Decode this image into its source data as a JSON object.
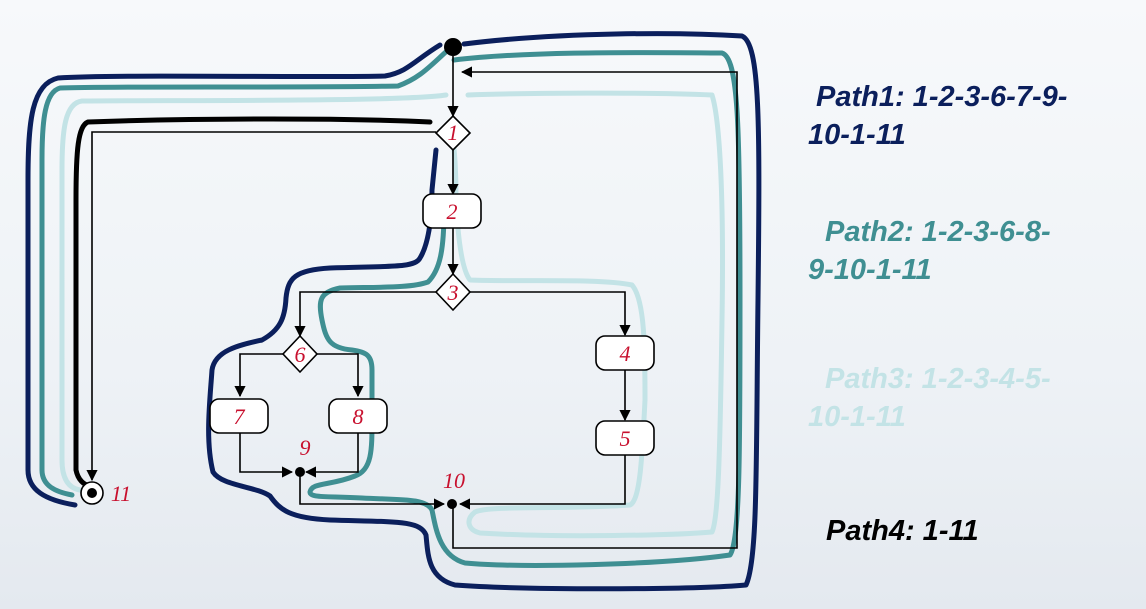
{
  "nodes": [
    {
      "id": "1",
      "label": "1",
      "shape": "diamond"
    },
    {
      "id": "2",
      "label": "2",
      "shape": "box"
    },
    {
      "id": "3",
      "label": "3",
      "shape": "diamond"
    },
    {
      "id": "4",
      "label": "4",
      "shape": "box"
    },
    {
      "id": "5",
      "label": "5",
      "shape": "box"
    },
    {
      "id": "6",
      "label": "6",
      "shape": "diamond"
    },
    {
      "id": "7",
      "label": "7",
      "shape": "box"
    },
    {
      "id": "8",
      "label": "8",
      "shape": "box"
    },
    {
      "id": "9",
      "label": "9",
      "shape": "junction"
    },
    {
      "id": "10",
      "label": "10",
      "shape": "junction"
    },
    {
      "id": "11",
      "label": "11",
      "shape": "final"
    }
  ],
  "edges": [
    [
      "start",
      "1"
    ],
    [
      "1",
      "2"
    ],
    [
      "2",
      "3"
    ],
    [
      "3",
      "6"
    ],
    [
      "3",
      "4"
    ],
    [
      "4",
      "5"
    ],
    [
      "6",
      "7"
    ],
    [
      "6",
      "8"
    ],
    [
      "7",
      "9"
    ],
    [
      "8",
      "9"
    ],
    [
      "9",
      "10"
    ],
    [
      "5",
      "10"
    ],
    [
      "10",
      "1"
    ],
    [
      "1",
      "11"
    ]
  ],
  "paths": [
    {
      "name": "Path1",
      "line1": "Path1: 1-2-3-6-7-9-",
      "line2": "10-1-11",
      "color": "#0b1f5c"
    },
    {
      "name": "Path2",
      "line1": "Path2: 1-2-3-6-8-",
      "line2": "9-10-1-11",
      "color": "#3f8f92"
    },
    {
      "name": "Path3",
      "line1": "Path3: 1-2-3-4-5-",
      "line2": "10-1-11",
      "color": "#c3e3e6"
    },
    {
      "name": "Path4",
      "line1": "Path4: 1-11",
      "line2": "",
      "color": "#000000"
    }
  ],
  "colors": {
    "node_label": "#c8102e",
    "flow_line": "#000000",
    "background": "#eef2f6"
  }
}
